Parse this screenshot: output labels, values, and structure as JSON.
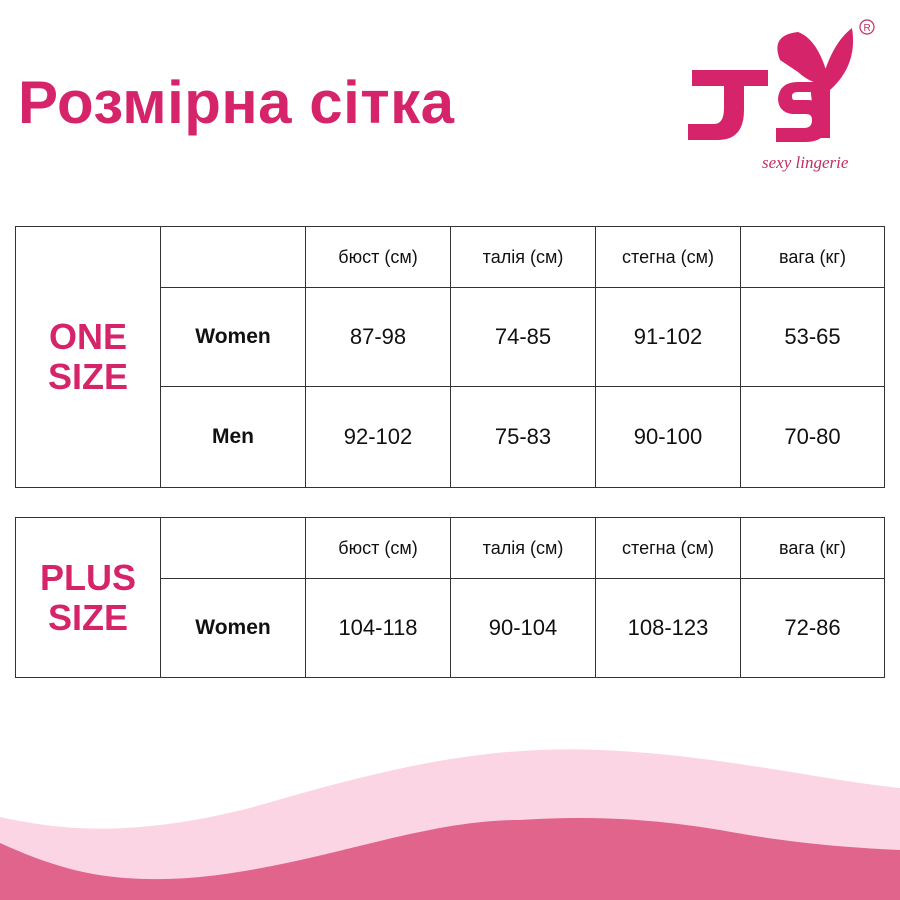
{
  "title": "Розмірна сітка",
  "logo": {
    "text": "JSY",
    "tagline": "sexy lingerie",
    "mark": "®"
  },
  "colors": {
    "accent": "#d6246a",
    "wave_light": "#fbd5e4",
    "wave_dark": "#e0648b"
  },
  "headers": [
    "бюст (см)",
    "талія (см)",
    "стегна (см)",
    "вага (кг)"
  ],
  "one_size": {
    "label_line1": "ONE",
    "label_line2": "SIZE",
    "rows": [
      {
        "label": "Women",
        "values": [
          "87-98",
          "74-85",
          "91-102",
          "53-65"
        ]
      },
      {
        "label": "Men",
        "values": [
          "92-102",
          "75-83",
          "90-100",
          "70-80"
        ]
      }
    ]
  },
  "plus_size": {
    "label_line1": "PLUS",
    "label_line2": "SIZE",
    "rows": [
      {
        "label": "Women",
        "values": [
          "104-118",
          "90-104",
          "108-123",
          "72-86"
        ]
      }
    ]
  }
}
